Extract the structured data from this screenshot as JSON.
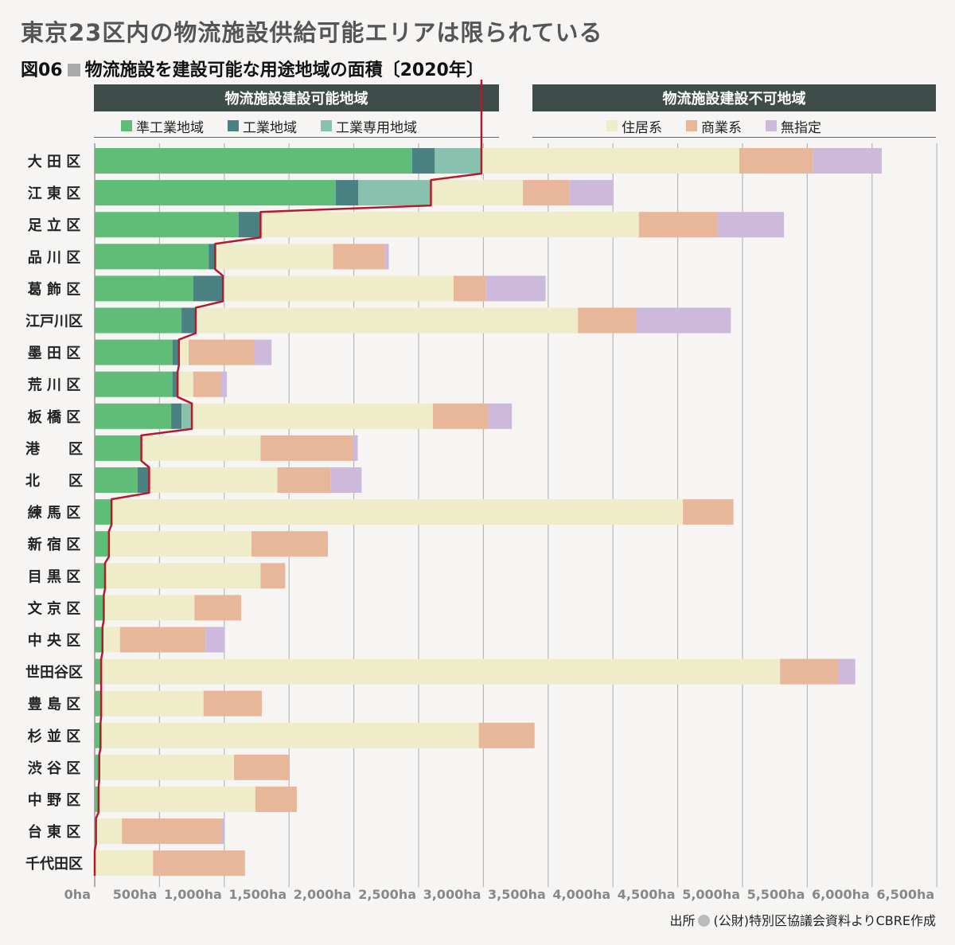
{
  "title": "東京23区内の物流施設供給可能エリアは限られている",
  "subtitle": {
    "figure": "図06",
    "text": "物流施設を建設可能な用途地域の面積〔2020年〕"
  },
  "groups": {
    "left": "物流施設建設可能地域",
    "right": "物流施設建設不可地域"
  },
  "legend": {
    "left": [
      {
        "label": "準工業地域",
        "color": "#5fbd77"
      },
      {
        "label": "工業地域",
        "color": "#4a8283"
      },
      {
        "label": "工業専用地域",
        "color": "#88c2ae"
      }
    ],
    "right": [
      {
        "label": "住居系",
        "color": "#efedc9"
      },
      {
        "label": "商業系",
        "color": "#e8b79a"
      },
      {
        "label": "無指定",
        "color": "#ccb9dc"
      }
    ]
  },
  "source": {
    "prefix": "出所",
    "text": "(公財)特別区協議会資料よりCBRE作成"
  },
  "chart_data": {
    "type": "bar",
    "orientation": "horizontal",
    "stacked": true,
    "xlim": [
      0,
      6500
    ],
    "xticks": [
      0,
      500,
      1000,
      1500,
      2000,
      2500,
      3000,
      3500,
      4000,
      4500,
      5000,
      5500,
      6000,
      6500
    ],
    "xtick_labels": [
      "0ha",
      "500ha",
      "1,000ha",
      "1,500ha",
      "2,000ha",
      "2,500ha",
      "3,000ha",
      "3,500ha",
      "4,000ha",
      "4,500ha",
      "5,000ha",
      "5,500ha",
      "6,000ha",
      "6,500ha"
    ],
    "grid": "vertical",
    "categories": [
      "大田区",
      "江東区",
      "足立区",
      "品川区",
      "葛飾区",
      "江戸川区",
      "墨田区",
      "荒川区",
      "板橋区",
      "港区",
      "北区",
      "練馬区",
      "新宿区",
      "目黒区",
      "文京区",
      "中央区",
      "世田谷区",
      "豊島区",
      "杉並区",
      "渋谷区",
      "中野区",
      "台東区",
      "千代田区"
    ],
    "category_labels": [
      "大 田 区",
      "江 東 区",
      "足 立 区",
      "品 川 区",
      "葛 飾 区",
      "江戸川区",
      "墨 田 区",
      "荒 川 区",
      "板 橋 区",
      "港　　区",
      "北　　区",
      "練 馬 区",
      "新 宿 区",
      "目 黒 区",
      "文 京 区",
      "中 央 区",
      "世田谷区",
      "豊 島 区",
      "杉 並 区",
      "渋 谷 区",
      "中 野 区",
      "台 東 区",
      "千代田区"
    ],
    "series": [
      {
        "name": "準工業地域",
        "color": "#5fbd77",
        "values": [
          2450,
          1860,
          1110,
          880,
          760,
          670,
          600,
          600,
          590,
          360,
          330,
          130,
          110,
          80,
          70,
          60,
          50,
          50,
          45,
          35,
          30,
          10,
          0
        ]
      },
      {
        "name": "工業地域",
        "color": "#4a8283",
        "values": [
          175,
          175,
          170,
          50,
          230,
          110,
          50,
          40,
          80,
          0,
          90,
          0,
          0,
          0,
          0,
          0,
          0,
          0,
          0,
          0,
          0,
          0,
          0
        ]
      },
      {
        "name": "工業専用地域",
        "color": "#88c2ae",
        "values": [
          360,
          560,
          0,
          0,
          0,
          0,
          0,
          0,
          80,
          0,
          0,
          0,
          0,
          0,
          0,
          0,
          0,
          0,
          0,
          0,
          0,
          0,
          0
        ]
      },
      {
        "name": "住居系",
        "color": "#efedc9",
        "values": [
          1990,
          710,
          2920,
          910,
          1780,
          2950,
          75,
          120,
          1860,
          920,
          990,
          4410,
          1100,
          1200,
          700,
          135,
          5240,
          790,
          2920,
          1040,
          1210,
          200,
          450
        ]
      },
      {
        "name": "商業系",
        "color": "#e8b79a",
        "values": [
          570,
          360,
          610,
          400,
          250,
          450,
          510,
          210,
          430,
          710,
          410,
          390,
          590,
          190,
          360,
          660,
          450,
          450,
          430,
          430,
          320,
          770,
          710
        ]
      },
      {
        "name": "無指定",
        "color": "#ccb9dc",
        "values": [
          530,
          340,
          510,
          30,
          460,
          730,
          130,
          50,
          180,
          40,
          240,
          0,
          0,
          0,
          0,
          150,
          130,
          0,
          0,
          0,
          0,
          20,
          0
        ]
      }
    ]
  }
}
